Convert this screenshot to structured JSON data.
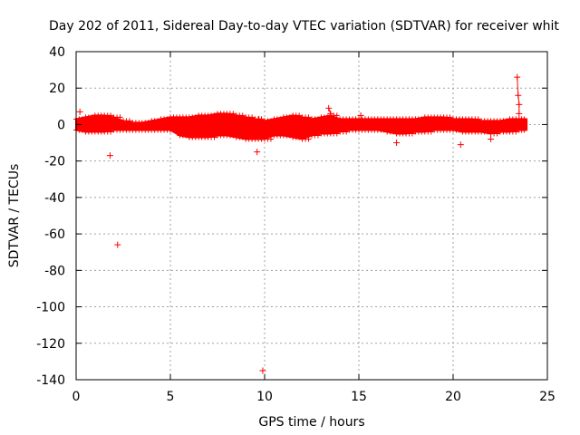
{
  "chart_data": {
    "type": "scatter",
    "title": "Day 202 of 2011, Sidereal Day-to-day VTEC variation (SDTVAR) for receiver whit",
    "xlabel": "GPS time / hours",
    "ylabel": "SDTVAR / TECUs",
    "xlim": [
      0,
      25
    ],
    "ylim": [
      -140,
      40
    ],
    "xticks": [
      0,
      5,
      10,
      15,
      20,
      25
    ],
    "yticks": [
      40,
      20,
      0,
      -20,
      -40,
      -60,
      -80,
      -100,
      -120,
      -140
    ],
    "grid": true,
    "marker": "+",
    "color": "#ff0000",
    "band": {
      "description": "dense continuous band of points",
      "x": [
        0,
        0.5,
        1,
        1.5,
        2,
        2.5,
        3,
        3.5,
        4,
        4.5,
        5,
        5.5,
        6,
        6.5,
        7,
        7.5,
        8,
        8.5,
        9,
        9.5,
        10,
        10.5,
        11,
        11.5,
        12,
        12.5,
        13,
        13.5,
        14,
        14.5,
        15,
        15.5,
        16,
        16.5,
        17,
        17.5,
        18,
        18.5,
        19,
        19.5,
        20,
        20.5,
        21,
        21.5,
        22,
        22.5,
        23,
        23.5,
        23.9
      ],
      "upper": [
        3,
        4,
        5,
        5,
        4,
        2,
        1,
        1,
        2,
        3,
        4,
        4,
        4,
        5,
        5,
        6,
        6,
        5,
        4,
        3,
        2,
        3,
        4,
        5,
        4,
        3,
        4,
        5,
        3,
        3,
        3,
        3,
        3,
        3,
        3,
        3,
        3,
        4,
        4,
        4,
        3,
        3,
        3,
        2,
        2,
        2,
        3,
        3,
        3
      ],
      "lower": [
        -3,
        -4,
        -4,
        -4,
        -3,
        -3,
        -3,
        -3,
        -3,
        -3,
        -3,
        -6,
        -7,
        -7,
        -7,
        -6,
        -6,
        -7,
        -8,
        -8,
        -8,
        -6,
        -6,
        -7,
        -8,
        -6,
        -5,
        -5,
        -4,
        -3,
        -3,
        -3,
        -3,
        -4,
        -5,
        -5,
        -4,
        -4,
        -3,
        -3,
        -3,
        -4,
        -4,
        -4,
        -5,
        -4,
        -4,
        -3,
        -3
      ]
    },
    "outliers": {
      "x": [
        0.2,
        1.8,
        2.2,
        9.6,
        9.7,
        9.9,
        13.4,
        13.5,
        15.1,
        17.0,
        20.4,
        22.0,
        23.4,
        23.45,
        23.5,
        23.5
      ],
      "y": [
        7,
        -17,
        -66,
        -15,
        3,
        -135,
        9,
        6,
        5,
        -10,
        -11,
        -8,
        26,
        16,
        11,
        6
      ]
    }
  }
}
